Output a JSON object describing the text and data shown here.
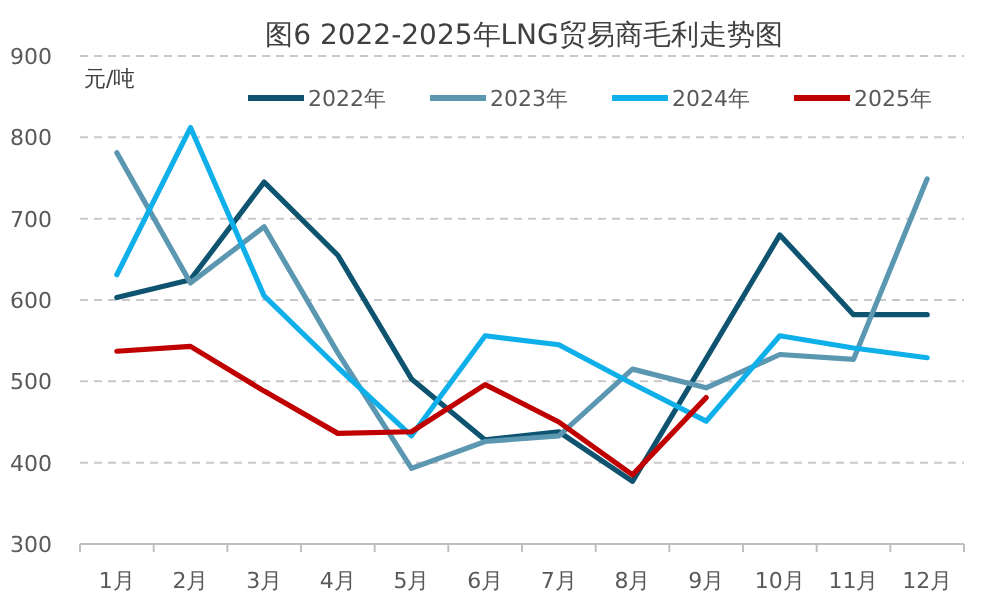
{
  "chart_data": {
    "type": "line",
    "title": "图6 2022-2025年LNG贸易商毛利走势图",
    "ylabel": "元/吨",
    "categories": [
      "1月",
      "2月",
      "3月",
      "4月",
      "5月",
      "6月",
      "7月",
      "8月",
      "9月",
      "10月",
      "11月",
      "12月"
    ],
    "series": [
      {
        "name": "2022年",
        "color": "#0e5470",
        "values": [
          603,
          625,
          745,
          655,
          503,
          428,
          438,
          377,
          528,
          680,
          582,
          582
        ]
      },
      {
        "name": "2023年",
        "color": "#5b97b1",
        "values": [
          781,
          621,
          690,
          535,
          393,
          426,
          433,
          515,
          492,
          533,
          527,
          749
        ]
      },
      {
        "name": "2024年",
        "color": "#0fb0ea",
        "values": [
          631,
          812,
          605,
          517,
          433,
          556,
          545,
          497,
          451,
          556,
          541,
          529
        ]
      },
      {
        "name": "2025年",
        "color": "#c00000",
        "values": [
          537,
          543,
          488,
          436,
          438,
          496,
          450,
          385,
          480,
          null,
          null,
          null
        ]
      }
    ],
    "ylim": [
      300,
      900
    ],
    "yticks": [
      300,
      400,
      500,
      600,
      700,
      800,
      900
    ],
    "grid": "y",
    "legend": "top",
    "marker": "none",
    "line_style": "solid"
  }
}
